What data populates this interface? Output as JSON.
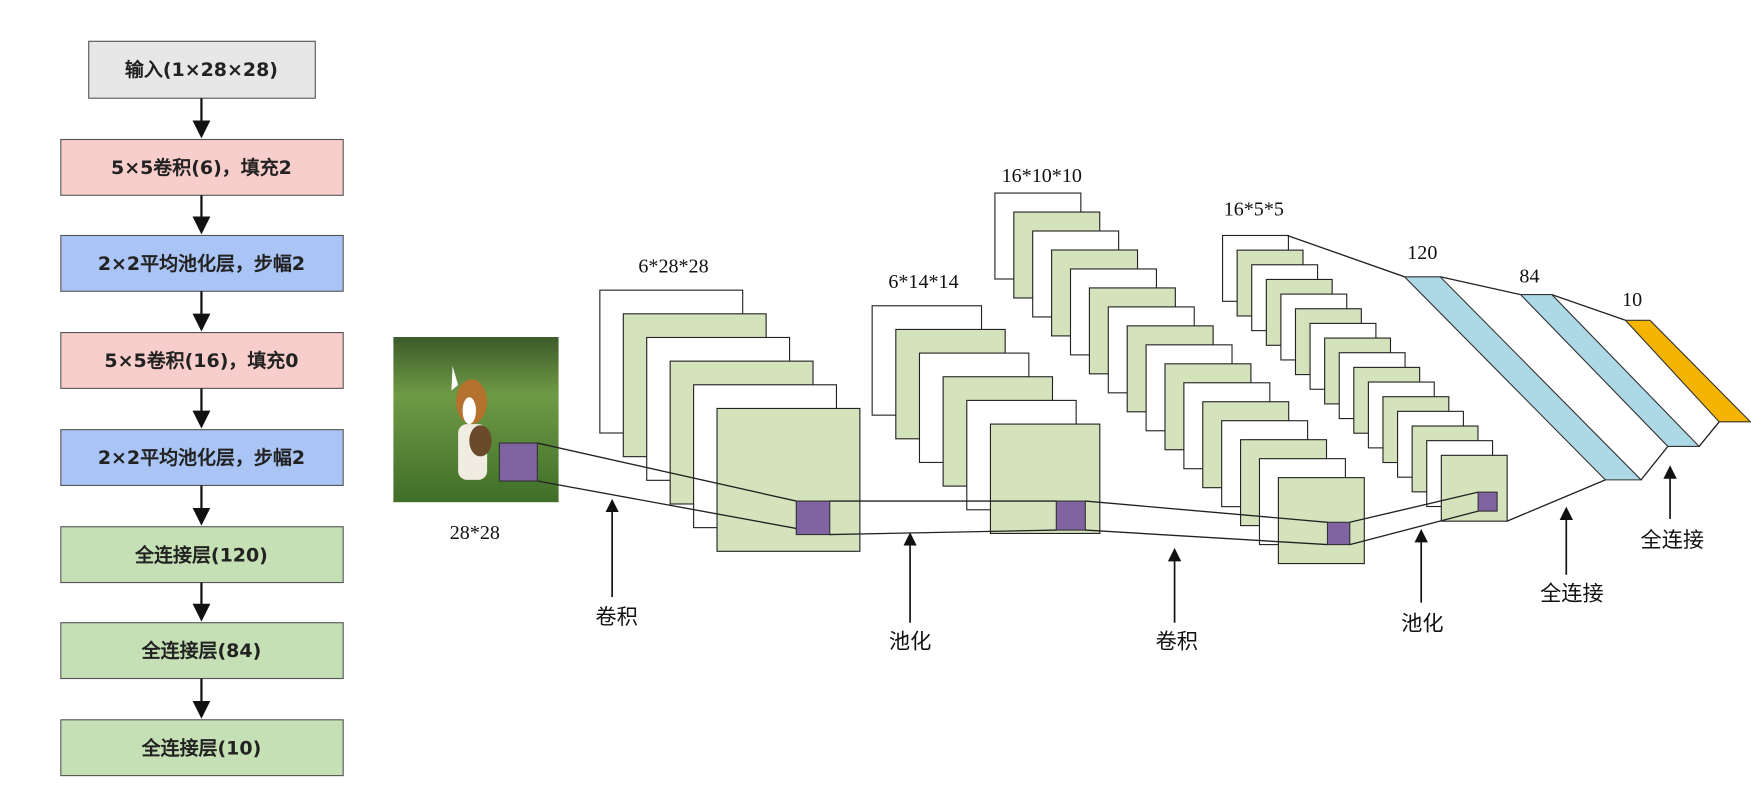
{
  "flowchart": {
    "nodes": [
      {
        "label": "输入(1×28×28)"
      },
      {
        "label": "5×5卷积(6)，填充2"
      },
      {
        "label": "2×2平均池化层，步幅2"
      },
      {
        "label": "5×5卷积(16)，填充0"
      },
      {
        "label": "2×2平均池化层，步幅2"
      },
      {
        "label": "全连接层(120)"
      },
      {
        "label": "全连接层(84)"
      },
      {
        "label": "全连接层(10)"
      }
    ]
  },
  "network": {
    "input_size": "28*28",
    "feature_maps": [
      "6*28*28",
      "6*14*14",
      "16*10*10",
      "16*5*5"
    ],
    "fc_sizes": [
      "120",
      "84",
      "10"
    ],
    "operations": [
      "卷积",
      "池化",
      "卷积",
      "池化",
      "全连接",
      "全连接"
    ]
  }
}
